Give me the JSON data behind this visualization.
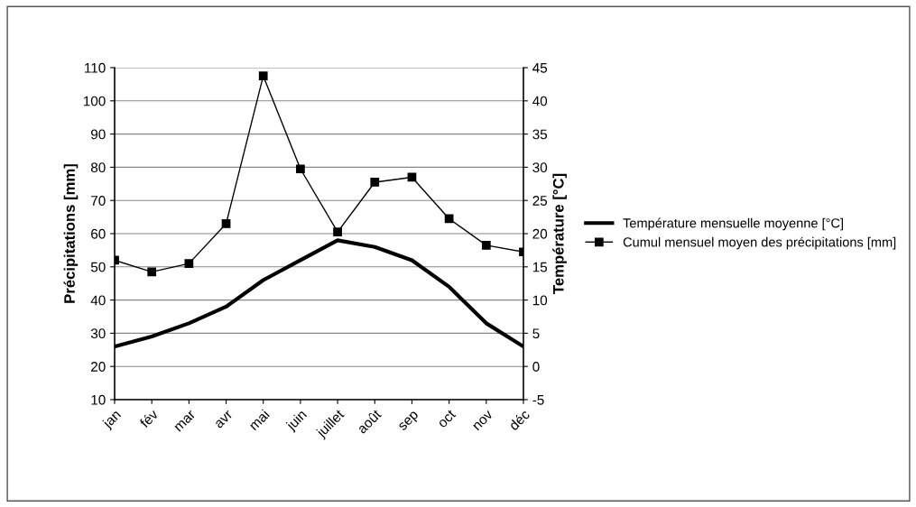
{
  "chart_data": {
    "type": "line",
    "categories": [
      "jan",
      "fév",
      "mar",
      "avr",
      "mai",
      "juin",
      "juillet",
      "août",
      "sep",
      "oct",
      "nov",
      "déc"
    ],
    "ylabel": "Précipitations [mm]",
    "y2label": "Température [°C]",
    "ylim": [
      10,
      110
    ],
    "yticks": [
      10,
      20,
      30,
      40,
      50,
      60,
      70,
      80,
      90,
      100,
      110
    ],
    "y2lim": [
      -5,
      45
    ],
    "y2ticks": [
      -5,
      0,
      5,
      10,
      15,
      20,
      25,
      30,
      35,
      40,
      45
    ],
    "grid": "y",
    "legend": "right",
    "series": [
      {
        "name": "Température mensuelle moyenne [°C]",
        "color": "#000000",
        "axis": "y2",
        "marker": "none",
        "values": [
          3,
          4.5,
          6.5,
          9,
          13,
          16,
          19,
          18,
          16,
          12,
          6.5,
          3
        ]
      },
      {
        "name": "Cumul mensuel moyen des précipitations [mm]",
        "color": "#000000",
        "axis": "y",
        "marker": "square",
        "values": [
          52,
          48.5,
          51,
          63,
          107.5,
          79.5,
          60.5,
          75.5,
          77,
          64.5,
          56.5,
          54.5
        ]
      }
    ]
  }
}
